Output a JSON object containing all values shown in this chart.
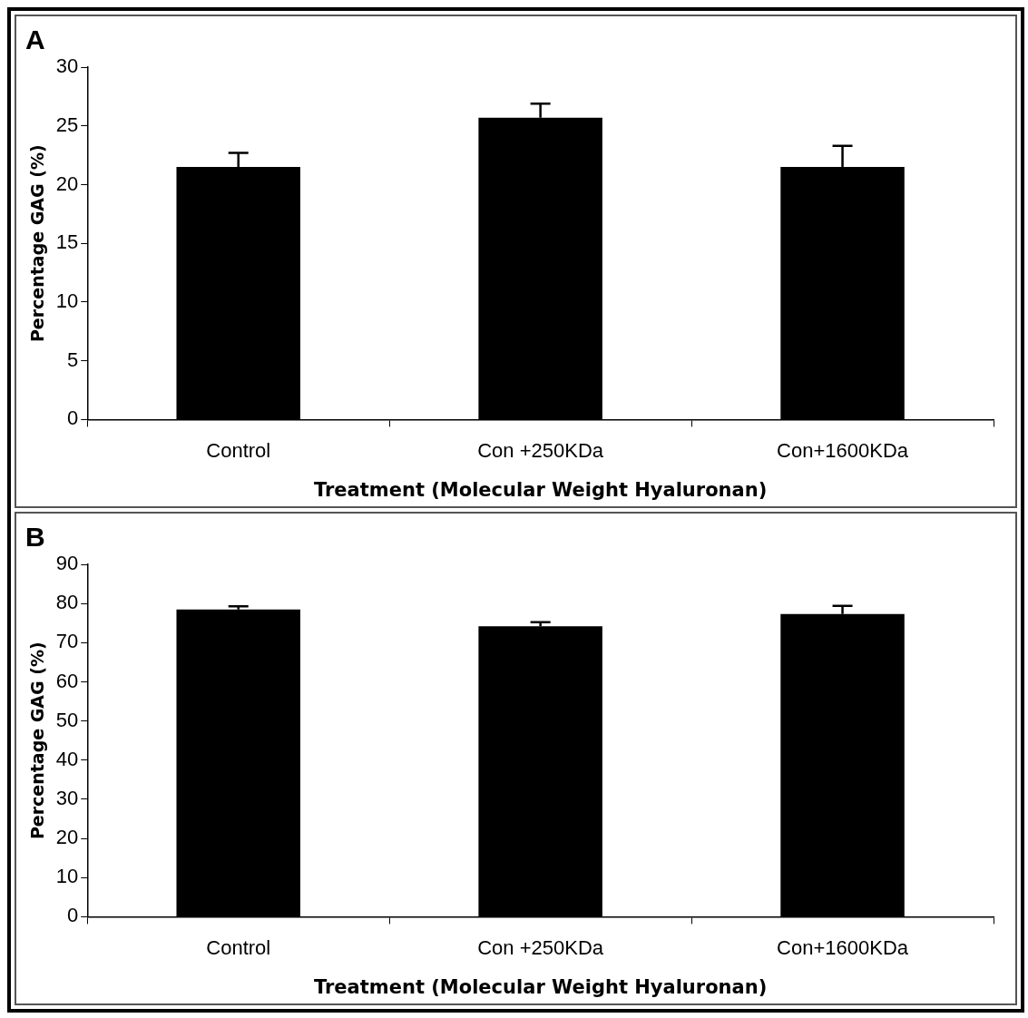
{
  "chart_data": [
    {
      "type": "bar",
      "title": "A",
      "xlabel": "Treatment (Molecular Weight Hyaluronan)",
      "ylabel": "Percentage GAG (%)",
      "categories": [
        "Control",
        "Con +250KDa",
        "Con+1600KDa"
      ],
      "values": [
        21.5,
        25.7,
        21.5
      ],
      "errors": [
        [
          21.5,
          22.7
        ],
        [
          25.7,
          26.9
        ],
        [
          21.5,
          23.3
        ]
      ],
      "color": "#000000",
      "ylim": [
        0,
        30
      ],
      "yticks": [
        0,
        5,
        10,
        15,
        20,
        25,
        30
      ],
      "grid": false,
      "legend": false
    },
    {
      "type": "bar",
      "title": "B",
      "xlabel": "Treatment (Molecular Weight Hyaluronan)",
      "ylabel": "Percentage GAG (%)",
      "categories": [
        "Control",
        "Con +250KDa",
        "Con+1600KDa"
      ],
      "values": [
        78.5,
        74.2,
        77.3
      ],
      "errors": [
        [
          78.5,
          79.3
        ],
        [
          74.2,
          75.2
        ],
        [
          77.3,
          79.4
        ]
      ],
      "color": "#000000",
      "ylim": [
        0,
        90
      ],
      "yticks": [
        0,
        10,
        20,
        30,
        40,
        50,
        60,
        70,
        80,
        90
      ],
      "grid": false,
      "legend": false
    }
  ]
}
